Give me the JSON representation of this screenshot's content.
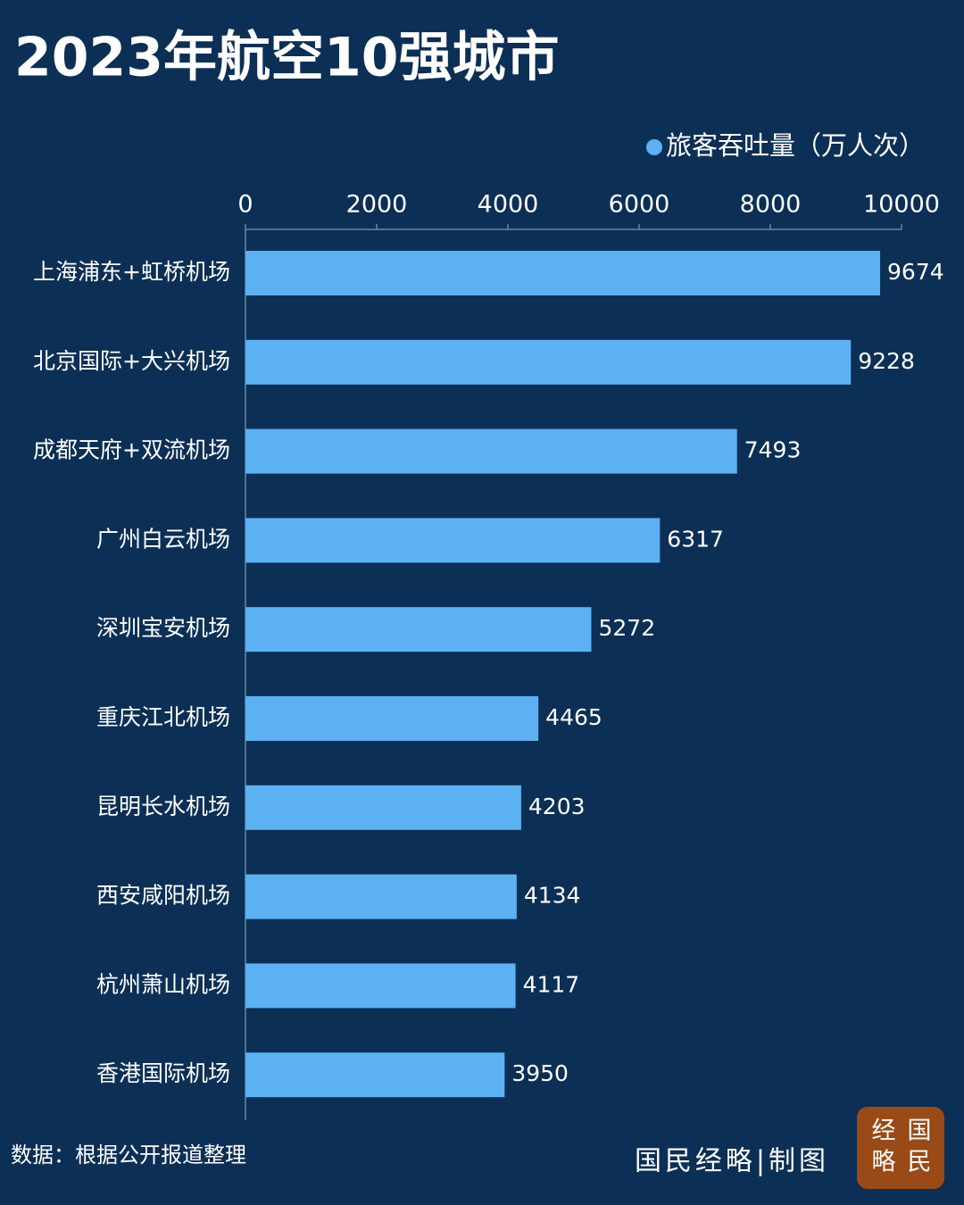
{
  "chart_data": {
    "type": "bar",
    "orientation": "horizontal",
    "title": "2023年航空10强城市",
    "categories": [
      "上海浦东+虹桥机场",
      "北京国际+大兴机场",
      "成都天府+双流机场",
      "广州白云机场",
      "深圳宝安机场",
      "重庆江北机场",
      "昆明长水机场",
      "西安咸阳机场",
      "杭州萧山机场",
      "香港国际机场"
    ],
    "series": [
      {
        "name": "旅客吞吐量（万人次）",
        "color": "#5cb1f2",
        "values": [
          9674,
          9228,
          7493,
          6317,
          5272,
          4465,
          4203,
          4134,
          4117,
          3950
        ]
      }
    ],
    "xlim": [
      0,
      10000
    ],
    "xticks": [
      0,
      2000,
      4000,
      6000,
      8000,
      10000
    ],
    "legend": "top-right",
    "source": "数据：根据公开报道整理",
    "credit": "国民经略|制图",
    "logo": [
      "经",
      "国",
      "略",
      "民"
    ]
  }
}
